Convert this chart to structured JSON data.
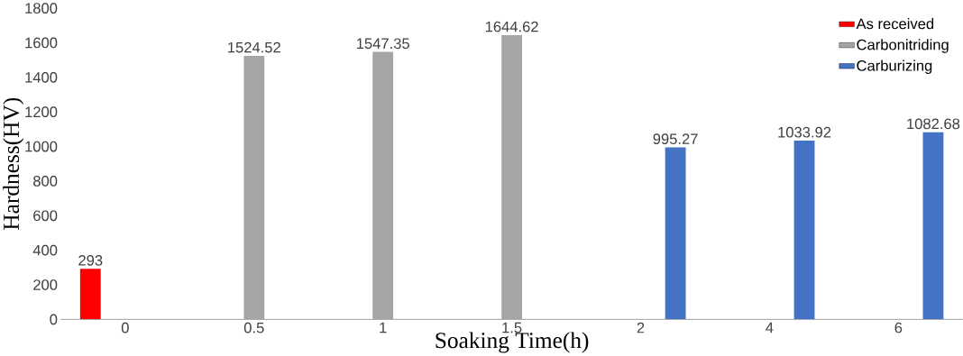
{
  "chart_data": {
    "type": "bar",
    "xlabel": "Soaking Time(h)",
    "ylabel": "Hardness(HV)",
    "categories": [
      "0",
      "0.5",
      "1",
      "1.5",
      "2",
      "4",
      "6"
    ],
    "series": [
      {
        "name": "As received",
        "color": "#ff0000",
        "values": [
          293,
          null,
          null,
          null,
          null,
          null,
          null
        ],
        "value_labels": [
          "293",
          null,
          null,
          null,
          null,
          null,
          null
        ]
      },
      {
        "name": "Carbonitriding",
        "color": "#a5a5a5",
        "values": [
          null,
          1524.52,
          1547.35,
          1644.62,
          null,
          null,
          null
        ],
        "value_labels": [
          null,
          "1524.52",
          "1547.35",
          "1644.62",
          null,
          null,
          null
        ]
      },
      {
        "name": "Carburizing",
        "color": "#4472c4",
        "values": [
          null,
          null,
          null,
          null,
          995.27,
          1033.92,
          1082.68
        ],
        "value_labels": [
          null,
          null,
          null,
          null,
          "995.27",
          "1033.92",
          "1082.68"
        ]
      }
    ],
    "ylim": [
      0,
      1800
    ],
    "yticks": [
      0,
      200,
      400,
      600,
      800,
      1000,
      1200,
      1400,
      1600,
      1800
    ],
    "legend": "top right",
    "grid": false
  }
}
